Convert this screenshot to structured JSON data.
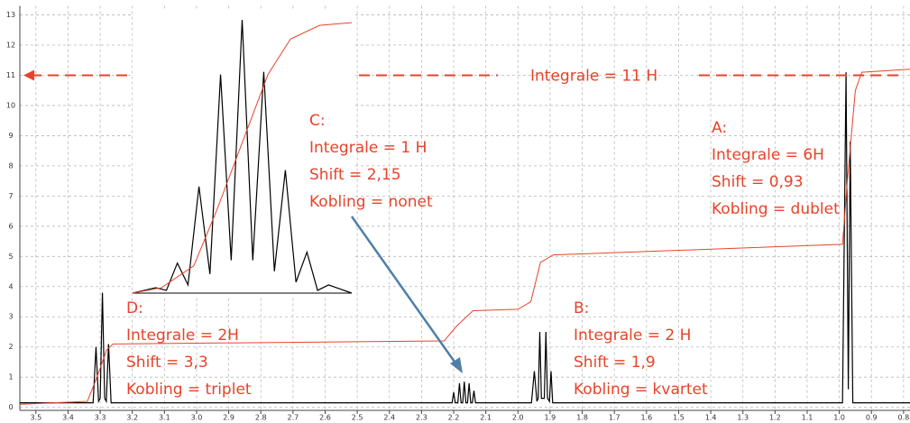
{
  "chart_data": [
    {
      "type": "line",
      "xlim": [
        3.55,
        0.78
      ],
      "ylim": [
        -0.1,
        13.3
      ],
      "xticks": [
        3.5,
        3.4,
        3.3,
        3.2,
        3.1,
        {
          "value": 3,
          "label": "3.0"
        },
        2.9,
        2.8,
        2.7,
        2.6,
        2.5,
        2.4,
        2.3,
        2.2,
        2.1,
        {
          "value": 2,
          "label": "2.0"
        },
        1.9,
        1.8,
        1.7,
        1.6,
        1.5,
        1.4,
        1.3,
        1.2,
        1.1,
        {
          "value": 1,
          "label": "1.0"
        },
        0.9,
        0.8
      ],
      "yticks": [
        0,
        1,
        2,
        3,
        4,
        5,
        6,
        7,
        8,
        9,
        10,
        11,
        12,
        13
      ],
      "grid": true,
      "series": [
        {
          "color": "#000000",
          "x": [
            3.55,
            3.322,
            3.313,
            3.305,
            3.3,
            3.293,
            3.286,
            3.281,
            3.274,
            3.266,
            2.215,
            2.205,
            2.2,
            2.195,
            2.187,
            2.182,
            2.177,
            2.172,
            2.167,
            2.162,
            2.157,
            2.152,
            2.147,
            2.142,
            2.137,
            2.132,
            2.127,
            2.122,
            1.958,
            1.949,
            1.941,
            1.937,
            1.932,
            1.927,
            1.918,
            1.913,
            1.908,
            1.902,
            1.897,
            1.892,
            0.99,
            0.979,
            0.972,
            0.966,
            0.958,
            0.78
          ],
          "values": [
            0.15,
            0.15,
            2.0,
            0.2,
            0.3,
            3.8,
            0.3,
            0.2,
            2.1,
            0.15,
            0.15,
            0.15,
            0.5,
            0.15,
            0.15,
            0.8,
            0.15,
            0.15,
            0.85,
            0.15,
            0.15,
            0.8,
            0.15,
            0.15,
            0.55,
            0.15,
            0.15,
            0.15,
            0.15,
            1.2,
            0.2,
            0.3,
            2.5,
            0.3,
            0.3,
            2.5,
            0.3,
            0.2,
            1.2,
            0.15,
            0.15,
            11.1,
            0.6,
            8.8,
            0.15,
            0.15
          ]
        },
        {
          "color": "#e8432a",
          "x": [
            3.55,
            3.34,
            3.31,
            3.28,
            3.26,
            2.23,
            2.19,
            2.14,
            2.0,
            1.96,
            1.93,
            1.89,
            0.99,
            0.975,
            0.95,
            0.93,
            0.78
          ],
          "values": [
            0.1,
            0.2,
            1.0,
            1.9,
            2.1,
            2.2,
            2.7,
            3.2,
            3.25,
            3.5,
            4.8,
            5.05,
            5.4,
            7.5,
            10.5,
            11.1,
            11.2
          ]
        }
      ],
      "hline": {
        "value": 11,
        "label": "Integrale = 11 H",
        "color": "#e8432a"
      },
      "annotations": [
        {
          "lines": [
            "D:",
            "Integrale = 2H",
            "Shift = 3,3",
            "Kobling = triplet"
          ]
        },
        {
          "lines": [
            "C:",
            "Integrale = 1 H",
            "Shift = 2,15",
            "Kobling = nonet"
          ]
        },
        {
          "lines": [
            "B:",
            "Integrale = 2 H",
            "Shift = 1,9",
            "Kobling = kvartet"
          ]
        },
        {
          "lines": [
            "A:",
            "Integrale = 6H",
            "Shift = 0,93",
            "Kobling = dublet"
          ]
        }
      ],
      "annotation_color": "#e8432a"
    },
    {
      "type": "line",
      "xlim": [
        2.184,
        2.116
      ],
      "ylim": [
        0,
        1.02
      ],
      "series": [
        {
          "color": "#000000",
          "x": [
            2.184,
            2.1768,
            2.1735,
            2.1701,
            2.1668,
            2.1634,
            2.16,
            2.1567,
            2.1534,
            2.15,
            2.1467,
            2.1433,
            2.14,
            2.1366,
            2.1333,
            2.1299,
            2.1266,
            2.1232,
            2.116
          ],
          "values": [
            0,
            0.02,
            0.01,
            0.11,
            0.03,
            0.39,
            0.07,
            0.8,
            0.12,
            1.0,
            0.12,
            0.81,
            0.08,
            0.45,
            0.04,
            0.15,
            0.01,
            0.03,
            0
          ]
        },
        {
          "color": "#e8432a",
          "x": [
            2.184,
            2.175,
            2.165,
            2.158,
            2.15,
            2.142,
            2.135,
            2.126,
            2.116
          ],
          "values": [
            0,
            0.02,
            0.1,
            0.3,
            0.55,
            0.8,
            0.93,
            0.98,
            0.99
          ]
        }
      ]
    }
  ]
}
